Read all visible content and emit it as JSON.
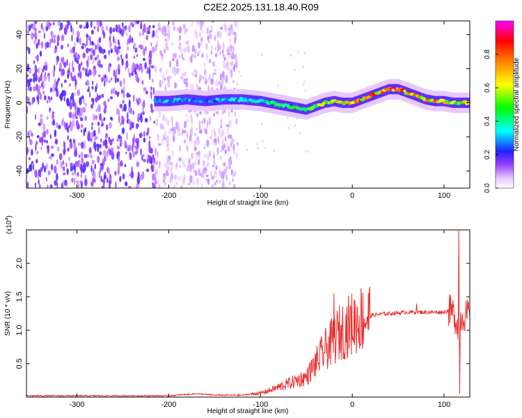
{
  "title": "C2E2.2025.131.18.40.R09",
  "colors": {
    "snr_line": "#e83030",
    "axis": "#000000"
  },
  "chart_data": [
    {
      "type": "heatmap",
      "xlabel": "Height of straight line (km)",
      "ylabel": "Frequency (Hz)",
      "xlim": [
        -355,
        128
      ],
      "ylim": [
        -50,
        48
      ],
      "xticks": [
        -300,
        -200,
        -100,
        0,
        100
      ],
      "yticks": [
        -40,
        -20,
        0,
        20,
        40
      ],
      "colorbar": {
        "label": "Normalized spectral amplitude",
        "range": [
          0,
          1
        ],
        "ticks": [
          "0.0",
          "0.2",
          "0.4",
          "0.6",
          "0.8"
        ],
        "colormap": "rainbow (white-purple-blue-cyan-green-yellow-red-magenta)"
      },
      "ridge": {
        "x": [
          -215,
          -200,
          -180,
          -160,
          -140,
          -120,
          -100,
          -80,
          -60,
          -50,
          -40,
          -30,
          -20,
          -10,
          0,
          10,
          20,
          30,
          40,
          50,
          60,
          70,
          80,
          90,
          100,
          110,
          120,
          128
        ],
        "freq": [
          1,
          1,
          2,
          1,
          2,
          2,
          1,
          -1,
          -3,
          -4,
          -2,
          0,
          1,
          0,
          0,
          2,
          4,
          6,
          8,
          8,
          6,
          4,
          2,
          1,
          1,
          0,
          0,
          0
        ],
        "amplitude": [
          0.3,
          0.35,
          0.35,
          0.3,
          0.35,
          0.4,
          0.45,
          0.5,
          0.5,
          0.55,
          0.6,
          0.65,
          0.7,
          0.75,
          0.8,
          0.85,
          0.85,
          0.85,
          0.9,
          0.85,
          0.85,
          0.8,
          0.8,
          0.8,
          0.75,
          0.7,
          0.7,
          0.7
        ]
      }
    },
    {
      "type": "line",
      "xlabel": "Height of straight line (km)",
      "ylabel": "SNR (10 * v/v)",
      "multiplier": "(x10",
      "multiplier_exp": "4",
      "xlim": [
        -355,
        128
      ],
      "ylim": [
        0,
        2.5
      ],
      "xticks": [
        -300,
        -200,
        -100,
        0,
        100
      ],
      "yticks": [
        "0.5",
        "1.0",
        "1.5",
        "2.0"
      ],
      "series": [
        {
          "x": [
            -355,
            -300,
            -250,
            -200,
            -170,
            -150,
            -120,
            -100,
            -90,
            -80,
            -70,
            -60,
            -50,
            -40,
            -30,
            -20,
            -15,
            -10,
            0,
            10,
            20,
            30,
            40,
            50,
            60,
            70,
            80,
            90,
            100,
            105,
            110,
            115,
            120,
            128
          ],
          "values": [
            0.02,
            0.02,
            0.02,
            0.02,
            0.05,
            0.03,
            0.03,
            0.06,
            0.1,
            0.15,
            0.2,
            0.25,
            0.3,
            0.5,
            0.7,
            0.85,
            0.95,
            1.0,
            1.1,
            1.18,
            1.22,
            1.24,
            1.25,
            1.26,
            1.27,
            1.27,
            1.27,
            1.27,
            1.27,
            1.3,
            1.25,
            1.1,
            1.22,
            1.22
          ],
          "noise_peaks": [
            {
              "x": -20,
              "value": 1.55
            },
            {
              "x": 70,
              "value": 1.4
            },
            {
              "x": 116,
              "value": 2.5
            },
            {
              "x": 117,
              "value": 0.05
            }
          ]
        }
      ]
    }
  ]
}
